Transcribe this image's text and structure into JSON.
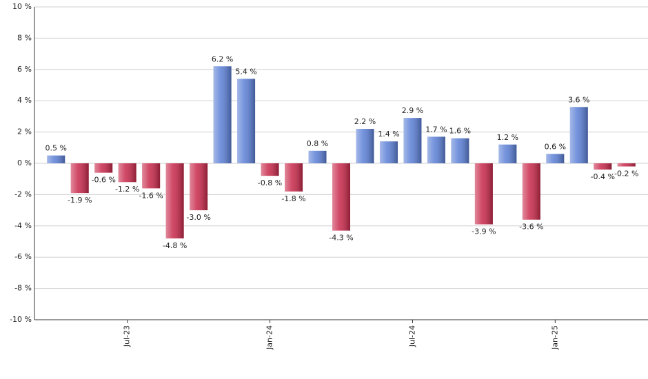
{
  "chart_data": {
    "type": "bar",
    "categories": [
      null,
      null,
      null,
      "Jul-23",
      null,
      null,
      null,
      null,
      null,
      "Jan-24",
      null,
      null,
      null,
      null,
      null,
      "Jul-24",
      null,
      null,
      null,
      null,
      null,
      "Jan-25",
      null,
      null,
      null
    ],
    "values": [
      0.5,
      -1.9,
      -0.6,
      -1.2,
      -1.6,
      -4.8,
      -3.0,
      6.2,
      5.4,
      -0.8,
      -1.8,
      0.8,
      -4.3,
      2.2,
      1.4,
      2.9,
      1.7,
      1.6,
      -3.9,
      1.2,
      -3.6,
      0.6,
      3.6,
      -0.4,
      -0.2
    ],
    "value_labels": [
      "0.5 %",
      "-1.9 %",
      "-0.6 %",
      "-1.2 %",
      "-1.6 %",
      "-4.8 %",
      "-3.0 %",
      "6.2 %",
      "5.4 %",
      "-0.8 %",
      "-1.8 %",
      "0.8 %",
      "-4.3 %",
      "2.2 %",
      "1.4 %",
      "2.9 %",
      "1.7 %",
      "1.6 %",
      "-3.9 %",
      "1.2 %",
      "-3.6 %",
      "0.6 %",
      "3.6 %",
      "-0.4 %",
      "-0.2 %"
    ],
    "positive_color": "#5b7fd6",
    "negative_color": "#c8284a",
    "ylim": [
      -10,
      10
    ],
    "yticks": [
      {
        "value": -10,
        "label": "-10 %"
      },
      {
        "value": -8,
        "label": "-8 %"
      },
      {
        "value": -6,
        "label": "-6 %"
      },
      {
        "value": -4,
        "label": "-4 %"
      },
      {
        "value": -2,
        "label": "-2 %"
      },
      {
        "value": 0,
        "label": "0 %"
      },
      {
        "value": 2,
        "label": "2 %"
      },
      {
        "value": 4,
        "label": "4 %"
      },
      {
        "value": 6,
        "label": "6 %"
      },
      {
        "value": 8,
        "label": "8 %"
      },
      {
        "value": 10,
        "label": "10 %"
      }
    ],
    "grid": true
  }
}
